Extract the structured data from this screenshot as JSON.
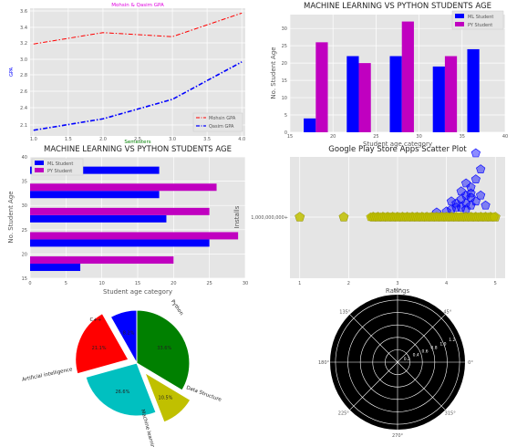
{
  "charts_text": {
    "c1": {
      "title": "Mohsin & Qasim GPA",
      "xlabel": "Semesters",
      "ylabel": "GPA",
      "legend": [
        "Mohsin GPA",
        "Qasim GPA"
      ],
      "xticks": [
        "1.0",
        "1.5",
        "2.0",
        "2.5",
        "3.0",
        "3.5",
        "4.0"
      ],
      "yticks": [
        "2.1",
        "2.4",
        "2.6",
        "2.8",
        "3.0",
        "3.2",
        "3.4",
        "3.6"
      ]
    },
    "c2": {
      "title": "MACHINE LEARNING VS PYTHON STUDENTS AGE",
      "xlabel": "Student age category",
      "ylabel": "No. Student Age",
      "legend": [
        "ML Student",
        "PY Student"
      ],
      "xticks": [
        "15",
        "20",
        "25",
        "30",
        "35",
        "40"
      ],
      "yticks": [
        "0",
        "5",
        "10",
        "15",
        "20",
        "25",
        "30"
      ]
    },
    "c3": {
      "title": "MACHINE LEARNING VS PYTHON STUDENTS AGE",
      "xlabel": "Student age category",
      "ylabel": "No. Student Age",
      "legend": [
        "ML Student",
        "PY Student"
      ],
      "xticks": [
        "0",
        "5",
        "10",
        "15",
        "20",
        "25",
        "30"
      ],
      "yticks": [
        "15",
        "20",
        "25",
        "30",
        "35",
        "40"
      ]
    },
    "c4": {
      "title": "Google Play Store Apps Scatter Plot",
      "xlabel": "Ratings",
      "ylabel": "Installs",
      "xticks": [
        "1",
        "2",
        "3",
        "4",
        "5"
      ],
      "yticks": [
        "1,000,000,000+"
      ]
    },
    "c6": {
      "angle_labels": [
        "90°",
        "45°",
        "0°",
        "315°",
        "270°",
        "225°",
        "180°",
        "135°"
      ],
      "radial_labels": [
        "0.2",
        "0.4",
        "0.6",
        "0.8",
        "1.0",
        "1.2"
      ]
    }
  },
  "colors": {
    "blue": "#0000ff",
    "magenta": "#c000c0",
    "red": "#ff0000",
    "green": "#008000",
    "cyan": "#00c0c0",
    "olive": "#c0c000",
    "axes_bg": "#e5e5e5"
  },
  "chart_data": [
    {
      "type": "line",
      "title": "Mohsin & Qasim GPA",
      "xlabel": "Semesters",
      "ylabel": "GPA",
      "grid": true,
      "legend_position": "bottom-right",
      "x": [
        1,
        2,
        3,
        4
      ],
      "xlim": [
        0.95,
        4.05
      ],
      "ylim": [
        2.05,
        3.62
      ],
      "series": [
        {
          "name": "Mohsin GPA",
          "color": "#ff0000",
          "style": "dash-dot",
          "values": [
            3.18,
            3.32,
            3.27,
            3.56
          ]
        },
        {
          "name": "Qasim GPA",
          "color": "#0000ff",
          "style": "dash-dot",
          "values": [
            2.12,
            2.26,
            2.5,
            2.96
          ]
        }
      ]
    },
    {
      "type": "bar",
      "title": "MACHINE LEARNING VS PYTHON STUDENTS AGE",
      "xlabel": "Student age category",
      "ylabel": "No. Student Age",
      "grid": true,
      "legend_position": "top-right",
      "x": [
        18,
        23,
        28,
        33,
        37
      ],
      "xlim": [
        15,
        40
      ],
      "ylim": [
        0,
        34
      ],
      "series": [
        {
          "name": "ML Student",
          "color": "#0000ff",
          "values": [
            4,
            22,
            22,
            19,
            24
          ]
        },
        {
          "name": "PY Student",
          "color": "#c000c0",
          "values": [
            26,
            20,
            32,
            22,
            null
          ]
        }
      ]
    },
    {
      "type": "bar",
      "orientation": "horizontal",
      "title": "MACHINE LEARNING VS PYTHON STUDENTS AGE",
      "xlabel": "Student age category",
      "ylabel": "No. Student Age",
      "grid": true,
      "legend_position": "top-left",
      "y": [
        18,
        23,
        28,
        33,
        38
      ],
      "xlim": [
        0,
        30
      ],
      "ylim": [
        15,
        40
      ],
      "series": [
        {
          "name": "ML Student",
          "color": "#0000ff",
          "values": [
            7,
            25,
            19,
            18,
            18
          ]
        },
        {
          "name": "PY Student",
          "color": "#c000c0",
          "values": [
            20,
            29,
            25,
            26,
            null
          ]
        }
      ]
    },
    {
      "type": "scatter",
      "title": "Google Play Store Apps Scatter Plot",
      "xlabel": "Ratings",
      "ylabel": "Installs",
      "grid": true,
      "xlim": [
        0.8,
        5.2
      ],
      "series": [
        {
          "name": "",
          "color": "#c0c000",
          "x": [
            1.0,
            1.9,
            2.5,
            2.6,
            2.7,
            2.8,
            2.9,
            3.0,
            3.1,
            3.2,
            3.3,
            3.4,
            3.5,
            3.6,
            3.7,
            3.8,
            3.9,
            4.0,
            4.1,
            4.2,
            4.3,
            4.4,
            4.5,
            4.6,
            4.7,
            4.8,
            4.9,
            5.0
          ],
          "y": [
            0,
            0,
            0,
            0,
            0,
            0,
            0,
            0,
            0,
            0,
            0,
            0,
            0,
            0,
            0,
            0,
            0,
            0,
            0,
            0,
            0,
            0,
            0,
            0,
            0,
            0,
            0,
            0
          ]
        },
        {
          "name": "",
          "color": "#0000ff",
          "x": [
            3.8,
            4.0,
            4.1,
            4.2,
            4.2,
            4.3,
            4.3,
            4.4,
            4.4,
            4.4,
            4.5,
            4.5,
            4.5,
            4.6,
            4.6,
            4.7,
            4.7,
            4.8,
            4.5,
            4.4,
            4.6,
            4.3,
            4.1
          ],
          "y": [
            0.05,
            0.1,
            0.2,
            0.3,
            0.5,
            0.3,
            0.7,
            0.2,
            0.5,
            0.9,
            0.4,
            0.8,
            1.3,
            0.6,
            1.7,
            0.9,
            2.2,
            0.4,
            1.0,
            1.5,
            3.0,
            1.1,
            0.6
          ]
        }
      ]
    },
    {
      "type": "pie",
      "labels": [
        "Python",
        "Data Structure",
        "Machine learning",
        "Artificial intelligence",
        "C++"
      ],
      "values": [
        33.6,
        10.5,
        26.6,
        21.1,
        8.2
      ],
      "colors": [
        "#008000",
        "#c0c000",
        "#00c0c0",
        "#ff0000",
        "#0000ff"
      ],
      "percent_labels": [
        "33.6%",
        "10.5%",
        "26.6%",
        "21.1%",
        "8.2%"
      ]
    },
    {
      "type": "polar",
      "angle_labels": [
        "0°",
        "45°",
        "90°",
        "135°",
        "180°",
        "225°",
        "270°",
        "315°"
      ],
      "radial_ticks": [
        0.2,
        0.4,
        0.6,
        0.8,
        1.0,
        1.2
      ]
    }
  ]
}
